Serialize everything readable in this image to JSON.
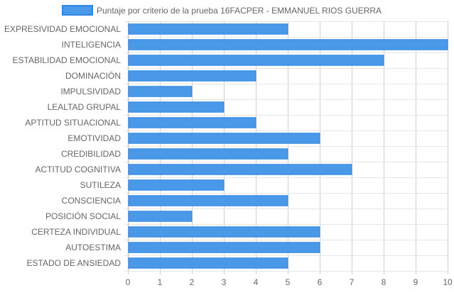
{
  "chart_data": {
    "type": "bar",
    "orientation": "horizontal",
    "title": "",
    "categories": [
      "EXPRESIVIDAD EMOCIONAL",
      "INTELIGENCIA",
      "ESTABILIDAD EMOCIONAL",
      "DOMINACIÓN",
      "IMPULSIVIDAD",
      "LEALTAD GRUPAL",
      "APTITUD SITUACIONAL",
      "EMOTIVIDAD",
      "CREDIBILIDAD",
      "ACTITUD COGNITIVA",
      "SUTILEZA",
      "CONSCIENCIA",
      "POSICIÓN SOCIAL",
      "CERTEZA INDIVIDUAL",
      "AUTOESTIMA",
      "ESTADO DE ANSIEDAD"
    ],
    "series": [
      {
        "name": "Puntaje por criterio de la prueba 16FACPER - EMMANUEL RIOS GUERRA",
        "values": [
          5,
          10,
          8,
          4,
          2,
          3,
          4,
          6,
          5,
          7,
          3,
          5,
          2,
          6,
          6,
          5
        ],
        "color": "#4a98e8",
        "border_color": "#2f86e6"
      }
    ],
    "xlim": [
      0,
      10
    ],
    "xticks": [
      "0",
      "1",
      "2",
      "3",
      "4",
      "5",
      "6",
      "7",
      "8",
      "9",
      "10"
    ],
    "grid": true,
    "legend_position": "top-center",
    "grid_color": "#cfcfcf",
    "text_color": "#666666"
  }
}
